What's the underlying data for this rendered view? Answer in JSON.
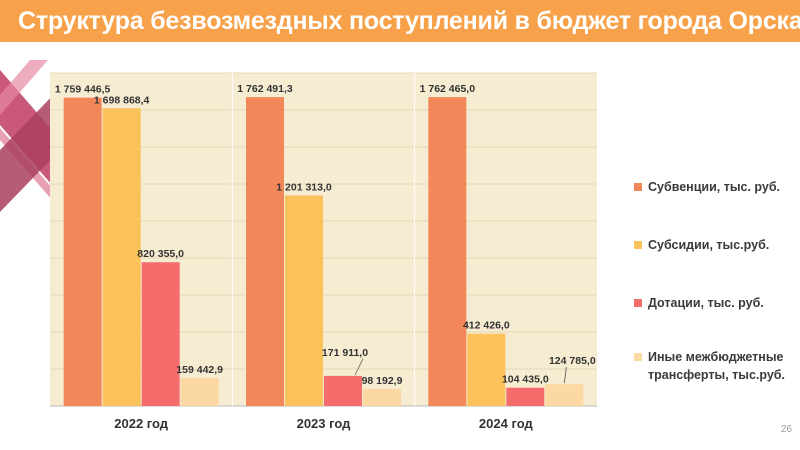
{
  "slide": {
    "title": "Структура безвозмездных поступлений в бюджет города Орска",
    "page_number": "26"
  },
  "colors": {
    "title_bar": "#f7a14a",
    "plot_background": "#f6ecd2",
    "deco_dark": "#b5486b",
    "deco_light": "#e58aa3"
  },
  "chart_data": {
    "type": "bar",
    "title": "",
    "xlabel": "",
    "ylabel": "",
    "categories": [
      "2022 год",
      "2023 год",
      "2024 год"
    ],
    "ylim": [
      0,
      1900000
    ],
    "grid": true,
    "legend_position": "right",
    "series": [
      {
        "name": "Субвенции, тыс. руб.",
        "color": "#f2885a",
        "values": [
          1759446.5,
          1762491.3,
          1762465.0
        ],
        "labels": [
          "1 759 446,5",
          "1 762 491,3",
          "1 762 465,0"
        ]
      },
      {
        "name": "Субсидии, тыс.руб.",
        "color": "#fbc15b",
        "values": [
          1698868.4,
          1201313.0,
          412426.0
        ],
        "labels": [
          "1 698 868,4",
          "1 201 313,0",
          "412 426,0"
        ]
      },
      {
        "name": "Дотации, тыс. руб.",
        "color": "#f46c6b",
        "values": [
          820355.0,
          171911.0,
          104435.0
        ],
        "labels": [
          "820 355,0",
          "171 911,0",
          "104 435,0"
        ]
      },
      {
        "name": "Иные межбюджетные трансферты, тыс.руб.",
        "color": "#fcd9a2",
        "values": [
          159442.9,
          98192.9,
          124785.0
        ],
        "labels": [
          "159 442,9",
          "98 192,9",
          "124 785,0"
        ]
      }
    ]
  }
}
